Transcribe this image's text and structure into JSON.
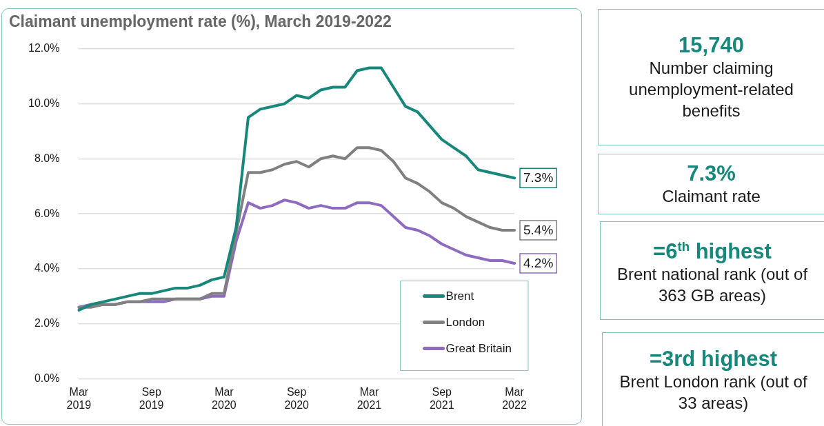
{
  "chart_data": [
    {
      "type": "line",
      "title": "Claimant unemployment rate (%), March 2019-2022",
      "categories": [
        "Mar 2019",
        null,
        null,
        null,
        null,
        null,
        "Sep 2019",
        null,
        null,
        null,
        null,
        null,
        "Mar 2020",
        null,
        null,
        null,
        null,
        null,
        "Sep 2020",
        null,
        null,
        null,
        null,
        null,
        "Mar 2021",
        null,
        null,
        null,
        null,
        null,
        "Sep 2021",
        null,
        null,
        null,
        null,
        null,
        "Mar 2022"
      ],
      "series": [
        {
          "name": "Brent",
          "color": "#17877b",
          "values": [
            2.5,
            2.7,
            2.8,
            2.9,
            3.0,
            3.1,
            3.1,
            3.2,
            3.3,
            3.3,
            3.4,
            3.6,
            3.7,
            5.5,
            9.5,
            9.8,
            9.9,
            10.0,
            10.3,
            10.2,
            10.5,
            10.6,
            10.6,
            11.2,
            11.3,
            11.3,
            10.6,
            9.9,
            9.7,
            9.2,
            8.7,
            8.4,
            8.1,
            7.6,
            7.5,
            7.4,
            7.3
          ],
          "value_labels": [
            null,
            null,
            null,
            null,
            null,
            null,
            null,
            null,
            null,
            null,
            null,
            null,
            null,
            null,
            null,
            null,
            null,
            null,
            null,
            null,
            null,
            null,
            null,
            null,
            null,
            null,
            null,
            null,
            null,
            null,
            null,
            null,
            null,
            null,
            null,
            null,
            "7.3%"
          ]
        },
        {
          "name": "London",
          "color": "#808080",
          "values": [
            2.6,
            2.6,
            2.7,
            2.7,
            2.8,
            2.8,
            2.9,
            2.9,
            2.9,
            2.9,
            2.9,
            3.1,
            3.1,
            5.3,
            7.5,
            7.5,
            7.6,
            7.8,
            7.9,
            7.7,
            8.0,
            8.1,
            8.0,
            8.4,
            8.4,
            8.3,
            7.9,
            7.3,
            7.1,
            6.8,
            6.4,
            6.2,
            5.9,
            5.7,
            5.5,
            5.4,
            5.4
          ],
          "value_labels": [
            null,
            null,
            null,
            null,
            null,
            null,
            null,
            null,
            null,
            null,
            null,
            null,
            null,
            null,
            null,
            null,
            null,
            null,
            null,
            null,
            null,
            null,
            null,
            null,
            null,
            null,
            null,
            null,
            null,
            null,
            null,
            null,
            null,
            null,
            null,
            null,
            "5.4%"
          ]
        },
        {
          "name": "Great Britain",
          "color": "#8e6bbf",
          "values": [
            2.6,
            2.7,
            2.7,
            2.7,
            2.8,
            2.8,
            2.8,
            2.8,
            2.9,
            2.9,
            2.9,
            3.0,
            3.0,
            5.0,
            6.4,
            6.2,
            6.3,
            6.5,
            6.4,
            6.2,
            6.3,
            6.2,
            6.2,
            6.4,
            6.4,
            6.3,
            5.9,
            5.5,
            5.4,
            5.2,
            4.9,
            4.7,
            4.5,
            4.4,
            4.3,
            4.3,
            4.2
          ],
          "value_labels": [
            null,
            null,
            null,
            null,
            null,
            null,
            null,
            null,
            null,
            null,
            null,
            null,
            null,
            null,
            null,
            null,
            null,
            null,
            null,
            null,
            null,
            null,
            null,
            null,
            null,
            null,
            null,
            null,
            null,
            null,
            null,
            null,
            null,
            null,
            null,
            null,
            "4.2%"
          ]
        }
      ],
      "ylim": [
        0,
        12
      ],
      "yticks": [
        {
          "value": 0,
          "label": "0.0%"
        },
        {
          "value": 2,
          "label": "2.0%"
        },
        {
          "value": 4,
          "label": "4.0%"
        },
        {
          "value": 6,
          "label": "6.0%"
        },
        {
          "value": 8,
          "label": "8.0%"
        },
        {
          "value": 10,
          "label": "10.0%"
        },
        {
          "value": 12,
          "label": "12.0%"
        }
      ],
      "grid": "y",
      "legend": "bottom right",
      "marker": "none",
      "line_style": "solid"
    },
    {
      "type": "other",
      "title": "15,740",
      "subtitle": "Number claiming unemployment-related benefits"
    },
    {
      "type": "other",
      "title": "7.3%",
      "subtitle": "Claimant rate"
    },
    {
      "type": "other",
      "title": "=6$^{th}$ highest",
      "subtitle": "Brent national rank (out of 363 GB areas)"
    },
    {
      "type": "other",
      "title": "=3rd highest",
      "subtitle": "Brent London rank (out of 33 areas)"
    }
  ]
}
